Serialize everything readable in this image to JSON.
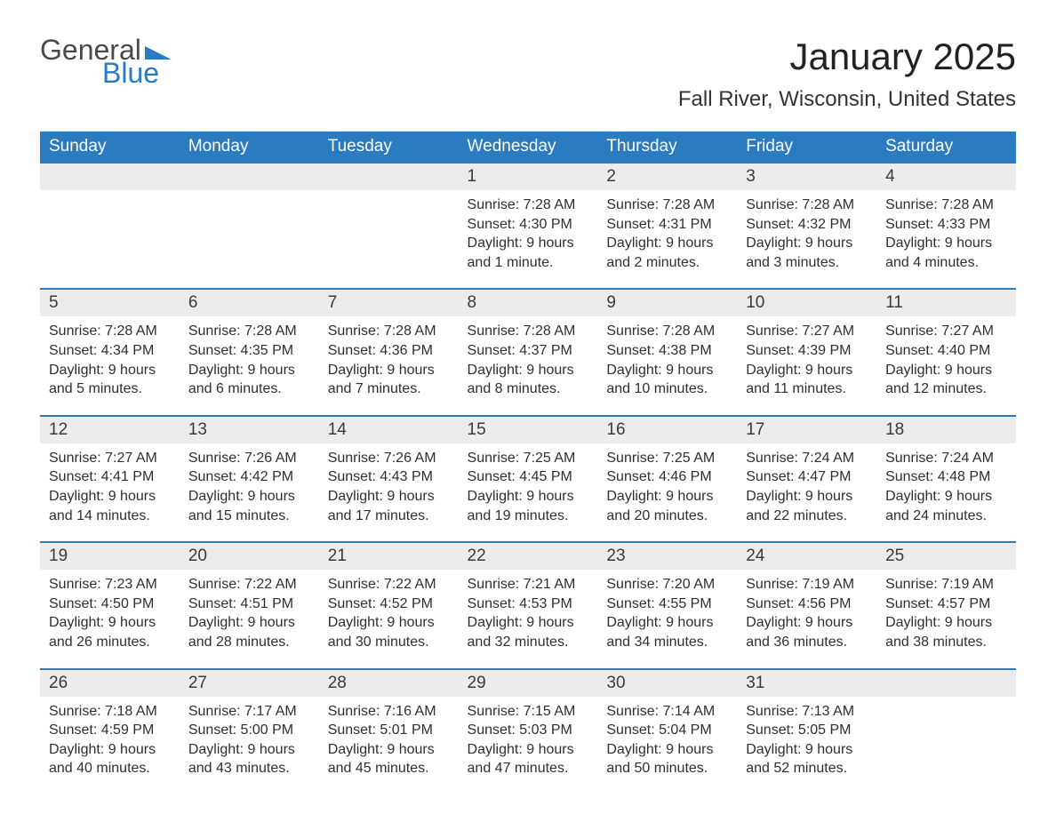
{
  "logo": {
    "text1": "General",
    "text2": "Blue",
    "flag_color": "#2a7bbf"
  },
  "title": "January 2025",
  "location": "Fall River, Wisconsin, United States",
  "colors": {
    "header_bg": "#2a7bbf",
    "header_text": "#ffffff",
    "daynum_bg": "#ececec",
    "row_border": "#2a7bbf",
    "body_text": "#333333",
    "page_bg": "#ffffff"
  },
  "weekdays": [
    "Sunday",
    "Monday",
    "Tuesday",
    "Wednesday",
    "Thursday",
    "Friday",
    "Saturday"
  ],
  "weeks": [
    [
      null,
      null,
      null,
      {
        "d": "1",
        "sunrise": "7:28 AM",
        "sunset": "4:30 PM",
        "daylight": "9 hours and 1 minute."
      },
      {
        "d": "2",
        "sunrise": "7:28 AM",
        "sunset": "4:31 PM",
        "daylight": "9 hours and 2 minutes."
      },
      {
        "d": "3",
        "sunrise": "7:28 AM",
        "sunset": "4:32 PM",
        "daylight": "9 hours and 3 minutes."
      },
      {
        "d": "4",
        "sunrise": "7:28 AM",
        "sunset": "4:33 PM",
        "daylight": "9 hours and 4 minutes."
      }
    ],
    [
      {
        "d": "5",
        "sunrise": "7:28 AM",
        "sunset": "4:34 PM",
        "daylight": "9 hours and 5 minutes."
      },
      {
        "d": "6",
        "sunrise": "7:28 AM",
        "sunset": "4:35 PM",
        "daylight": "9 hours and 6 minutes."
      },
      {
        "d": "7",
        "sunrise": "7:28 AM",
        "sunset": "4:36 PM",
        "daylight": "9 hours and 7 minutes."
      },
      {
        "d": "8",
        "sunrise": "7:28 AM",
        "sunset": "4:37 PM",
        "daylight": "9 hours and 8 minutes."
      },
      {
        "d": "9",
        "sunrise": "7:28 AM",
        "sunset": "4:38 PM",
        "daylight": "9 hours and 10 minutes."
      },
      {
        "d": "10",
        "sunrise": "7:27 AM",
        "sunset": "4:39 PM",
        "daylight": "9 hours and 11 minutes."
      },
      {
        "d": "11",
        "sunrise": "7:27 AM",
        "sunset": "4:40 PM",
        "daylight": "9 hours and 12 minutes."
      }
    ],
    [
      {
        "d": "12",
        "sunrise": "7:27 AM",
        "sunset": "4:41 PM",
        "daylight": "9 hours and 14 minutes."
      },
      {
        "d": "13",
        "sunrise": "7:26 AM",
        "sunset": "4:42 PM",
        "daylight": "9 hours and 15 minutes."
      },
      {
        "d": "14",
        "sunrise": "7:26 AM",
        "sunset": "4:43 PM",
        "daylight": "9 hours and 17 minutes."
      },
      {
        "d": "15",
        "sunrise": "7:25 AM",
        "sunset": "4:45 PM",
        "daylight": "9 hours and 19 minutes."
      },
      {
        "d": "16",
        "sunrise": "7:25 AM",
        "sunset": "4:46 PM",
        "daylight": "9 hours and 20 minutes."
      },
      {
        "d": "17",
        "sunrise": "7:24 AM",
        "sunset": "4:47 PM",
        "daylight": "9 hours and 22 minutes."
      },
      {
        "d": "18",
        "sunrise": "7:24 AM",
        "sunset": "4:48 PM",
        "daylight": "9 hours and 24 minutes."
      }
    ],
    [
      {
        "d": "19",
        "sunrise": "7:23 AM",
        "sunset": "4:50 PM",
        "daylight": "9 hours and 26 minutes."
      },
      {
        "d": "20",
        "sunrise": "7:22 AM",
        "sunset": "4:51 PM",
        "daylight": "9 hours and 28 minutes."
      },
      {
        "d": "21",
        "sunrise": "7:22 AM",
        "sunset": "4:52 PM",
        "daylight": "9 hours and 30 minutes."
      },
      {
        "d": "22",
        "sunrise": "7:21 AM",
        "sunset": "4:53 PM",
        "daylight": "9 hours and 32 minutes."
      },
      {
        "d": "23",
        "sunrise": "7:20 AM",
        "sunset": "4:55 PM",
        "daylight": "9 hours and 34 minutes."
      },
      {
        "d": "24",
        "sunrise": "7:19 AM",
        "sunset": "4:56 PM",
        "daylight": "9 hours and 36 minutes."
      },
      {
        "d": "25",
        "sunrise": "7:19 AM",
        "sunset": "4:57 PM",
        "daylight": "9 hours and 38 minutes."
      }
    ],
    [
      {
        "d": "26",
        "sunrise": "7:18 AM",
        "sunset": "4:59 PM",
        "daylight": "9 hours and 40 minutes."
      },
      {
        "d": "27",
        "sunrise": "7:17 AM",
        "sunset": "5:00 PM",
        "daylight": "9 hours and 43 minutes."
      },
      {
        "d": "28",
        "sunrise": "7:16 AM",
        "sunset": "5:01 PM",
        "daylight": "9 hours and 45 minutes."
      },
      {
        "d": "29",
        "sunrise": "7:15 AM",
        "sunset": "5:03 PM",
        "daylight": "9 hours and 47 minutes."
      },
      {
        "d": "30",
        "sunrise": "7:14 AM",
        "sunset": "5:04 PM",
        "daylight": "9 hours and 50 minutes."
      },
      {
        "d": "31",
        "sunrise": "7:13 AM",
        "sunset": "5:05 PM",
        "daylight": "9 hours and 52 minutes."
      },
      null
    ]
  ],
  "labels": {
    "sunrise": "Sunrise: ",
    "sunset": "Sunset: ",
    "daylight": "Daylight: "
  }
}
